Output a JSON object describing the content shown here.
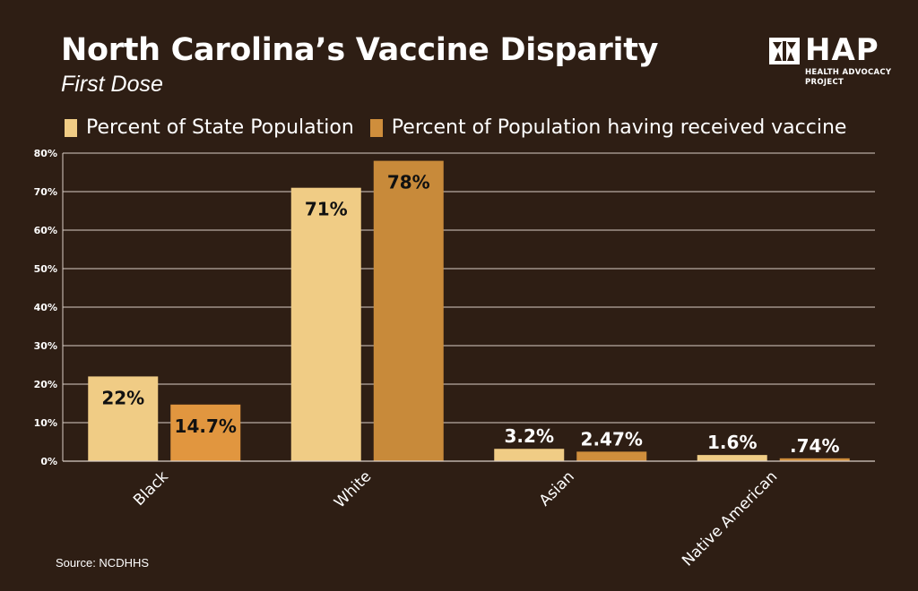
{
  "header": {
    "title": "North Carolina’s Vaccine Disparity",
    "subtitle": "First Dose"
  },
  "logo": {
    "name": "HAP",
    "subtitle_line1": "HEALTH ADVOCACY",
    "subtitle_line2": "PROJECT"
  },
  "legend": {
    "items": [
      {
        "label": "Percent of State Population",
        "color": "#f0cc85"
      },
      {
        "label": "Percent of Population having received vaccine",
        "color": "#cf8e3c"
      }
    ]
  },
  "source": "Source: NCDHHS",
  "chart_data": {
    "type": "bar",
    "categories": [
      "Black",
      "White",
      "Asian",
      "Native American"
    ],
    "series": [
      {
        "name": "Percent of State Population",
        "values": [
          22,
          71,
          3.2,
          1.6
        ],
        "labels": [
          "22%",
          "71%",
          "3.2%",
          "1.6%"
        ],
        "color": "#f0cc85"
      },
      {
        "name": "Percent of Population having received vaccine",
        "values": [
          14.7,
          78,
          2.47,
          0.74
        ],
        "labels": [
          "14.7%",
          "78%",
          "2.47%",
          ".74%"
        ],
        "colors": [
          "#e1963f",
          "#c88a3a",
          "#cf8e3c",
          "#cf8e3c"
        ]
      }
    ],
    "ylim": [
      0,
      80
    ],
    "yticks": [
      0,
      10,
      20,
      30,
      40,
      50,
      60,
      70,
      80
    ],
    "ytick_labels": [
      "0%",
      "10%",
      "20%",
      "30%",
      "40%",
      "50%",
      "60%",
      "70%",
      "80%"
    ],
    "grid": true,
    "legend_position": "top-left"
  }
}
